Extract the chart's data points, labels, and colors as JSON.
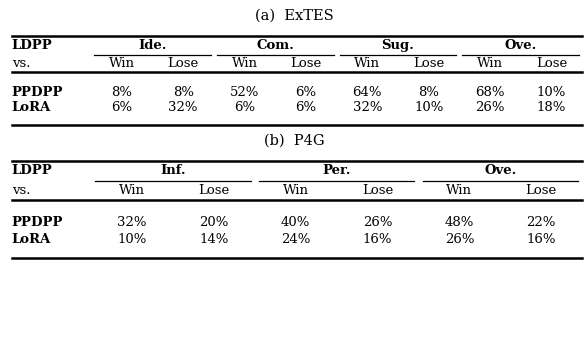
{
  "title_a": "(a)  ExTES",
  "title_b": "(b)  P4G",
  "table_a": {
    "col_groups": [
      "Ide.",
      "Com.",
      "Sug.",
      "Ove."
    ],
    "sub_cols": [
      "Win",
      "Lose"
    ],
    "data": [
      [
        "8%",
        "8%",
        "52%",
        "6%",
        "64%",
        "8%",
        "68%",
        "10%"
      ],
      [
        "6%",
        "32%",
        "6%",
        "6%",
        "32%",
        "10%",
        "26%",
        "18%"
      ]
    ]
  },
  "table_b": {
    "col_groups": [
      "Inf.",
      "Per.",
      "Ove."
    ],
    "sub_cols": [
      "Win",
      "Lose"
    ],
    "data": [
      [
        "32%",
        "20%",
        "40%",
        "26%",
        "48%",
        "22%"
      ],
      [
        "10%",
        "14%",
        "24%",
        "16%",
        "26%",
        "16%"
      ]
    ]
  },
  "font_family": "DejaVu Serif",
  "title_fontsize": 10.5,
  "header_fontsize": 9.5,
  "cell_fontsize": 9.5,
  "bg_color": "#ffffff",
  "line_color": "#000000"
}
